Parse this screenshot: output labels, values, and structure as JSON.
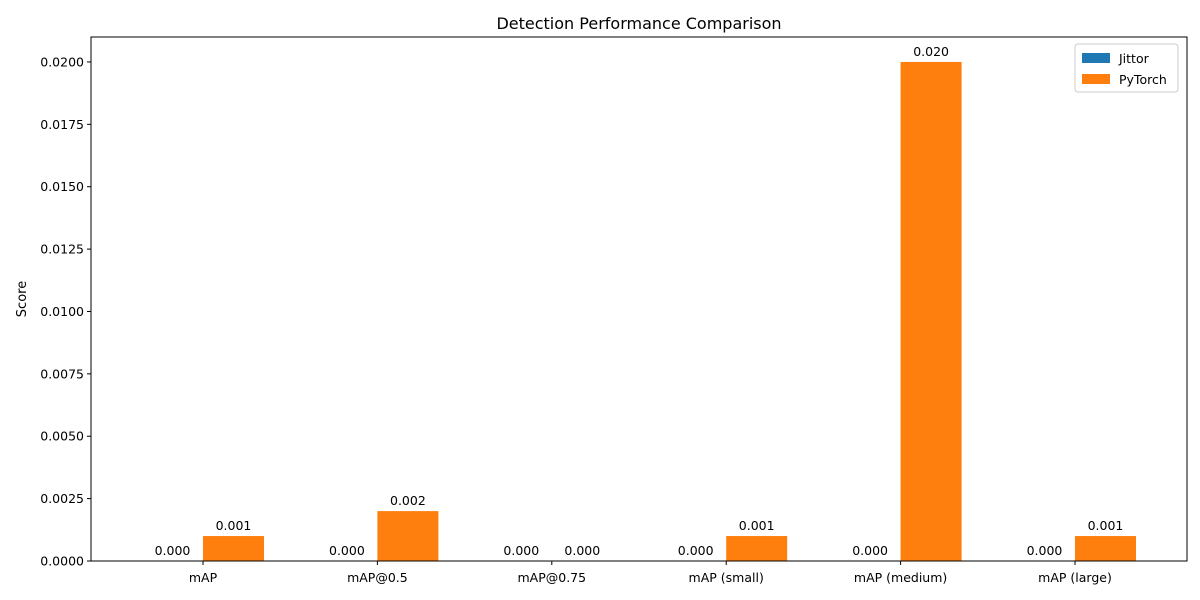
{
  "chart_data": {
    "type": "bar",
    "title": "Detection Performance Comparison",
    "xlabel": "",
    "ylabel": "Score",
    "ylim": [
      0,
      0.021
    ],
    "yticks": [
      "0.0000",
      "0.0025",
      "0.0050",
      "0.0075",
      "0.0100",
      "0.0125",
      "0.0150",
      "0.0175",
      "0.0200"
    ],
    "grid": false,
    "legend_position": "top-right",
    "categories": [
      "mAP",
      "mAP@0.5",
      "mAP@0.75",
      "mAP (small)",
      "mAP (medium)",
      "mAP (large)"
    ],
    "series": [
      {
        "name": "Jittor",
        "color": "#1f77b4",
        "values": [
          0.0,
          0.0,
          0.0,
          0.0,
          0.0,
          0.0
        ],
        "labels": [
          "0.000",
          "0.000",
          "0.000",
          "0.000",
          "0.000",
          "0.000"
        ]
      },
      {
        "name": "PyTorch",
        "color": "#ff7f0e",
        "values": [
          0.001,
          0.002,
          0.0,
          0.001,
          0.02,
          0.001
        ],
        "labels": [
          "0.001",
          "0.002",
          "0.000",
          "0.001",
          "0.020",
          "0.001"
        ]
      }
    ]
  }
}
